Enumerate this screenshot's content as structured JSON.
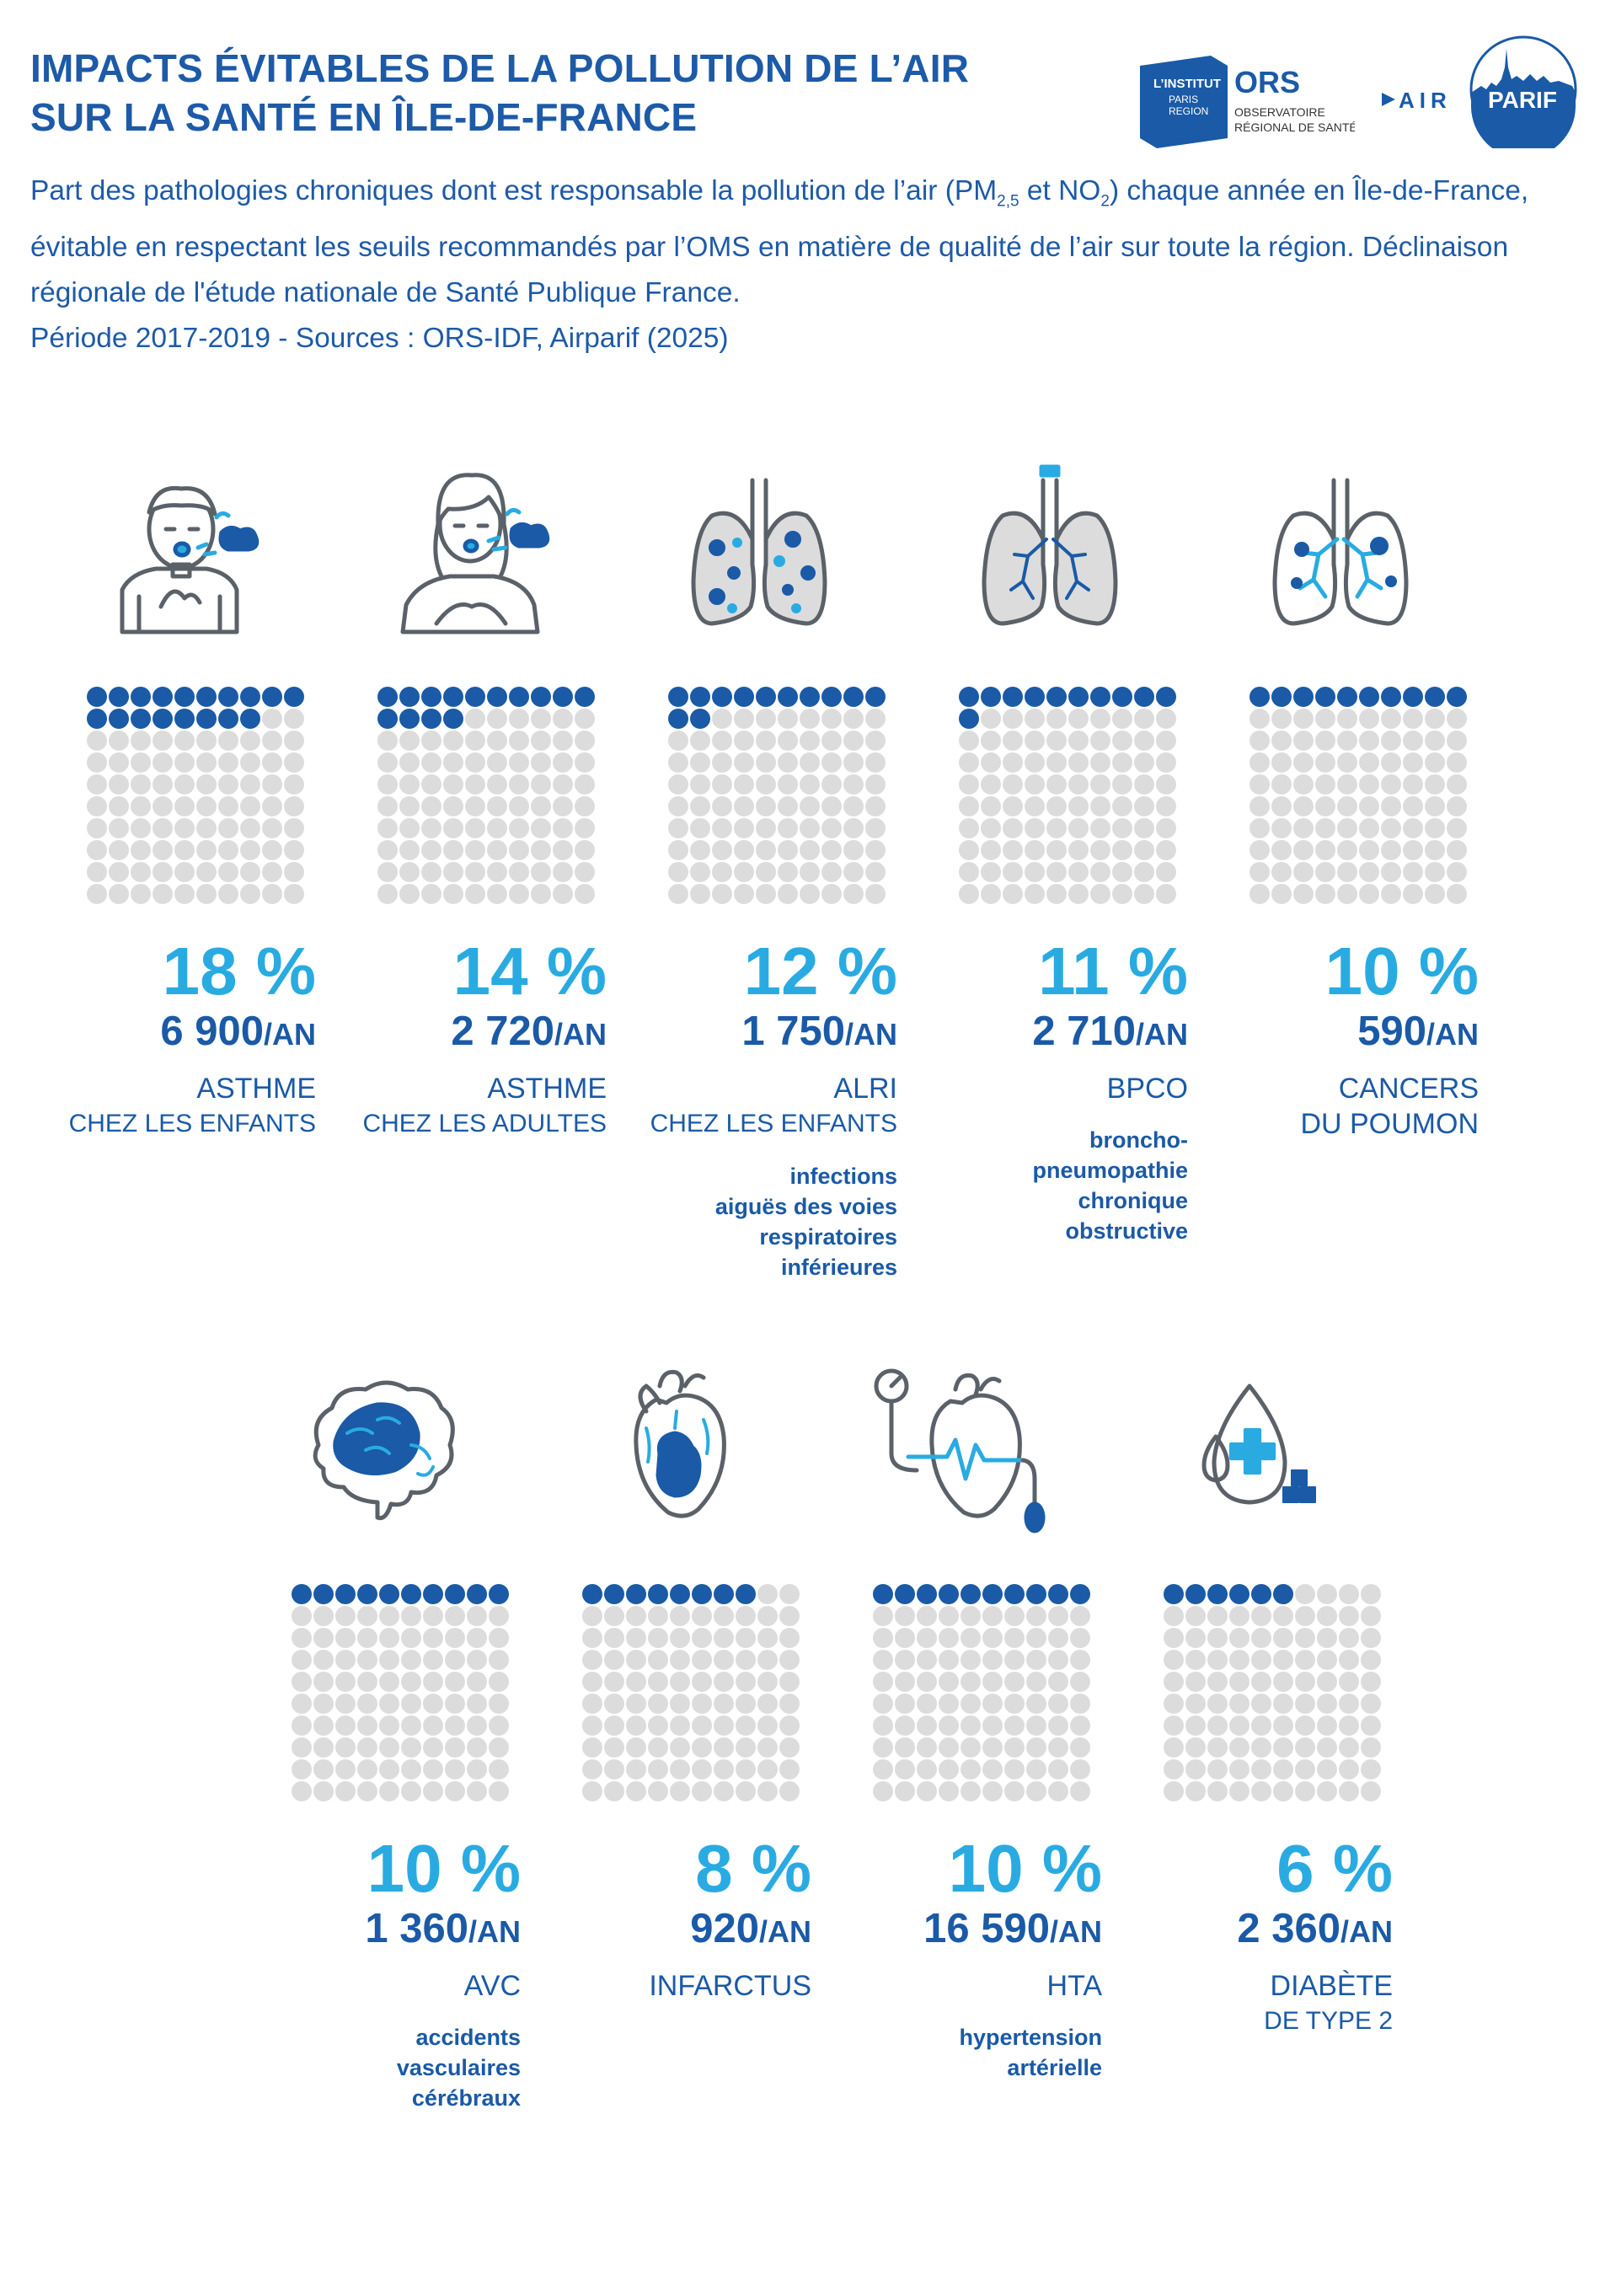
{
  "header": {
    "title_line1": "IMPACTS ÉVITABLES DE LA POLLUTION DE L’AIR",
    "title_line2": "SUR LA SANTÉ EN ÎLE-DE-FRANCE",
    "subtitle_part1": "Part des pathologies chroniques dont est responsable la pollution de l’air (PM",
    "subtitle_sub1": "2,5",
    "subtitle_part2": " et NO",
    "subtitle_sub2": "2",
    "subtitle_part3": ") chaque année en Île-de-France, évitable en respectant les seuils recommandés par l’OMS en matière de qualité de l’air sur toute la région. Déclinaison régionale de l'étude nationale de Santé Publique France.",
    "period": "Période 2017-2019 - Sources : ORS-IDF, Airparif (2025)"
  },
  "logos": {
    "institut_line1": "L’INSTITUT",
    "institut_line2": "PARIS",
    "institut_line3": "REGION",
    "ors_acronym": "ORS",
    "ors_line1": "OBSERVATOIRE",
    "ors_line2": "RÉGIONAL DE SANTÉ",
    "airparif_air": "AIR",
    "airparif_parif": "PARIF"
  },
  "colors": {
    "filled_dot": "#1a5aa6",
    "empty_dot": "#dcdcdc",
    "percent": "#29abe2",
    "text": "#1a5aa6",
    "icon_gray": "#5b6168",
    "icon_blue": "#29abe2"
  },
  "chart_data": {
    "type": "unit-dot-grid",
    "grid": {
      "columns": 10,
      "rows": 10
    },
    "unit_suffix": "/AN",
    "items": [
      {
        "icon": "child-coughing-icon",
        "percent": 18,
        "percent_label": "18 %",
        "count": "6 900",
        "name": "ASTHME",
        "sub": "CHEZ LES ENFANTS",
        "desc": ""
      },
      {
        "icon": "woman-coughing-icon",
        "percent": 14,
        "percent_label": "14 %",
        "count": "2 720",
        "name": "ASTHME",
        "sub": "CHEZ LES ADULTES",
        "desc": ""
      },
      {
        "icon": "lungs-virus-icon",
        "percent": 12,
        "percent_label": "12 %",
        "count": "1 750",
        "name": "ALRI",
        "sub": "CHEZ LES ENFANTS",
        "desc": "infections\naiguës des voies\nrespiratoires\ninférieures"
      },
      {
        "icon": "lungs-bronchi-icon",
        "percent": 11,
        "percent_label": "11 %",
        "count": "2 710",
        "name": "BPCO",
        "sub": "",
        "desc": "broncho-\npneumopathie\nchronique\nobstructive"
      },
      {
        "icon": "lungs-tumor-icon",
        "percent": 10,
        "percent_label": "10 %",
        "count": "590",
        "name": "CANCERS",
        "sub": "DU POUMON",
        "desc": ""
      },
      {
        "icon": "brain-icon",
        "percent": 10,
        "percent_label": "10 %",
        "count": "1 360",
        "name": "AVC",
        "sub": "",
        "desc": "accidents\nvasculaires\ncérébraux"
      },
      {
        "icon": "heart-icon",
        "percent": 8,
        "percent_label": "8 %",
        "count": "920",
        "name": "INFARCTUS",
        "sub": "",
        "desc": ""
      },
      {
        "icon": "heart-pressure-icon",
        "percent": 10,
        "percent_label": "10 %",
        "count": "16 590",
        "name": "HTA",
        "sub": "",
        "desc": "hypertension\nartérielle"
      },
      {
        "icon": "blood-drop-sugar-icon",
        "percent": 6,
        "percent_label": "6 %",
        "count": "2 360",
        "name": "DIABÈTE",
        "sub": "DE TYPE 2",
        "desc": ""
      }
    ]
  }
}
